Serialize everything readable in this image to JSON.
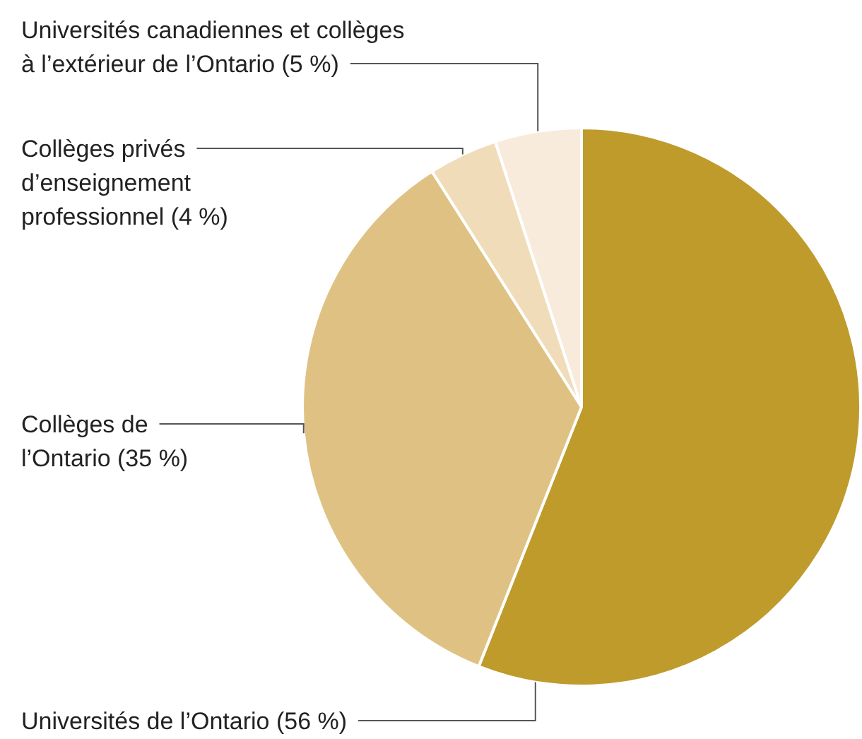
{
  "chart_data": {
    "type": "pie",
    "categories": [
      "Universités de l’Ontario (56 %)",
      "Collèges de l’Ontario (35 %)",
      "Collèges privés d’enseignement professionnel (4 %)",
      "Universités canadiennes et collèges à l’extérieur de l’Ontario (5 %)"
    ],
    "values": [
      56,
      35,
      4,
      5
    ],
    "colors": [
      "#bf9b2c",
      "#dfc283",
      "#f0dcb8",
      "#f8ebdb"
    ],
    "legend": false
  }
}
